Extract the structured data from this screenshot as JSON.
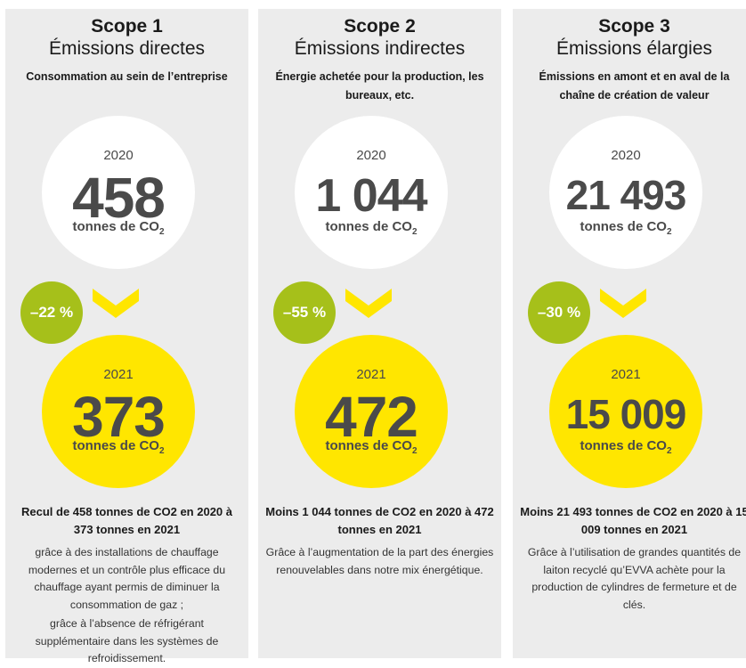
{
  "colors": {
    "panel": "#ececec",
    "yellow": "#ffe600",
    "green": "#a6c01a",
    "number": "#4a4a4a"
  },
  "scopes": [
    {
      "title": "Scope 1",
      "subtitle": "Émissions directes",
      "description": "Consommation au sein de l’entreprise",
      "year_before": "2020",
      "value_before": "458",
      "unit": "tonnes de CO",
      "unit_sub": "2",
      "change": "–22 %",
      "year_after": "2021",
      "value_after": "373",
      "summary": "Recul de 458 tonnes de CO2 en 2020 à 373 tonnes en 2021",
      "details": [
        "grâce à des installations de chauffage modernes et un contrôle plus efficace du chauffage ayant permis de diminuer la consommation de gaz ;",
        "grâce à l’absence de réfrigérant supplémentaire dans les systèmes de refroidissement."
      ]
    },
    {
      "title": "Scope 2",
      "subtitle": "Émissions indirectes",
      "description": "Énergie achetée pour la production, les bureaux, etc.",
      "year_before": "2020",
      "value_before": "1 044",
      "unit": "tonnes de CO",
      "unit_sub": "2",
      "change": "–55 %",
      "year_after": "2021",
      "value_after": "472",
      "summary": "Moins 1 044 tonnes de CO2 en 2020 à 472 tonnes en 2021",
      "details": [
        "Grâce à l’augmentation de la part des énergies renouvelables dans notre mix énergétique."
      ]
    },
    {
      "title": "Scope 3",
      "subtitle": "Émissions élargies",
      "description": "Émissions en amont et en aval de la chaîne de création de valeur",
      "year_before": "2020",
      "value_before": "21 493",
      "unit": "tonnes de CO",
      "unit_sub": "2",
      "change": "–30 %",
      "year_after": "2021",
      "value_after": "15 009",
      "summary": "Moins 21 493 tonnes de CO2 en 2020 à 15 009 tonnes en 2021",
      "details": [
        "Grâce à l’utilisation de grandes quantités de laiton recyclé qu’EVVA achète pour la production de cylindres de fermeture et de clés."
      ]
    }
  ]
}
